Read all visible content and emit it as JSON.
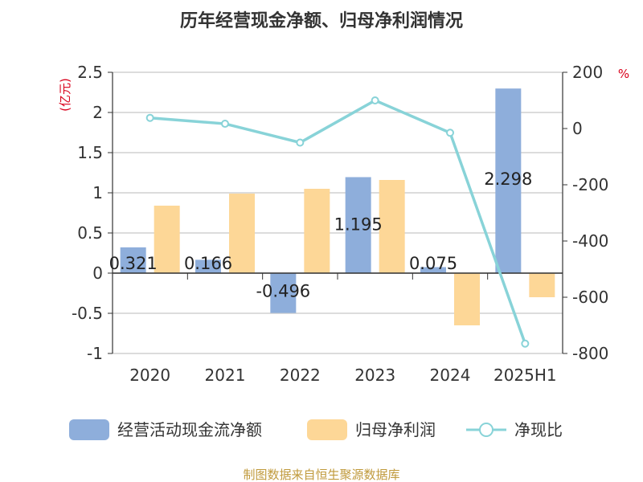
{
  "chart_data": {
    "type": "bar",
    "title": "历年经营现金净额、归母净利润情况",
    "left_unit": "(亿元)",
    "right_unit": "%",
    "categories": [
      "2020",
      "2021",
      "2022",
      "2023",
      "2024",
      "2025H1"
    ],
    "series": [
      {
        "name": "经营活动现金流净额",
        "kind": "bar",
        "axis": "left",
        "color": "#8eaedb",
        "values": [
          0.321,
          0.166,
          -0.496,
          1.195,
          0.075,
          2.298
        ],
        "labels": [
          "0.321",
          "0.166",
          "-0.496",
          "1.195",
          "0.075",
          "2.298"
        ]
      },
      {
        "name": "归母净利润",
        "kind": "bar",
        "axis": "left",
        "color": "#fdd797",
        "values": [
          0.84,
          0.99,
          1.05,
          1.16,
          -0.65,
          -0.3
        ]
      },
      {
        "name": "净现比",
        "kind": "line",
        "axis": "right",
        "color": "#88d3d8",
        "values": [
          38,
          17,
          -50,
          100,
          -15,
          -765
        ]
      }
    ],
    "yleft": {
      "min": -1,
      "max": 2.5,
      "ticks": [
        "-1",
        "-0.5",
        "0",
        "0.5",
        "1",
        "1.5",
        "2",
        "2.5"
      ]
    },
    "yright": {
      "min": -800,
      "max": 200,
      "ticks": [
        "-800",
        "-600",
        "-400",
        "-200",
        "0",
        "200"
      ]
    },
    "grid": true,
    "legend_position": "bottom"
  },
  "footer": "制图数据来自恒生聚源数据库",
  "colors": {
    "unit": "#d9001b",
    "footer": "#c09a3c",
    "axis": "#333333",
    "grid": "#d0d0d0"
  }
}
